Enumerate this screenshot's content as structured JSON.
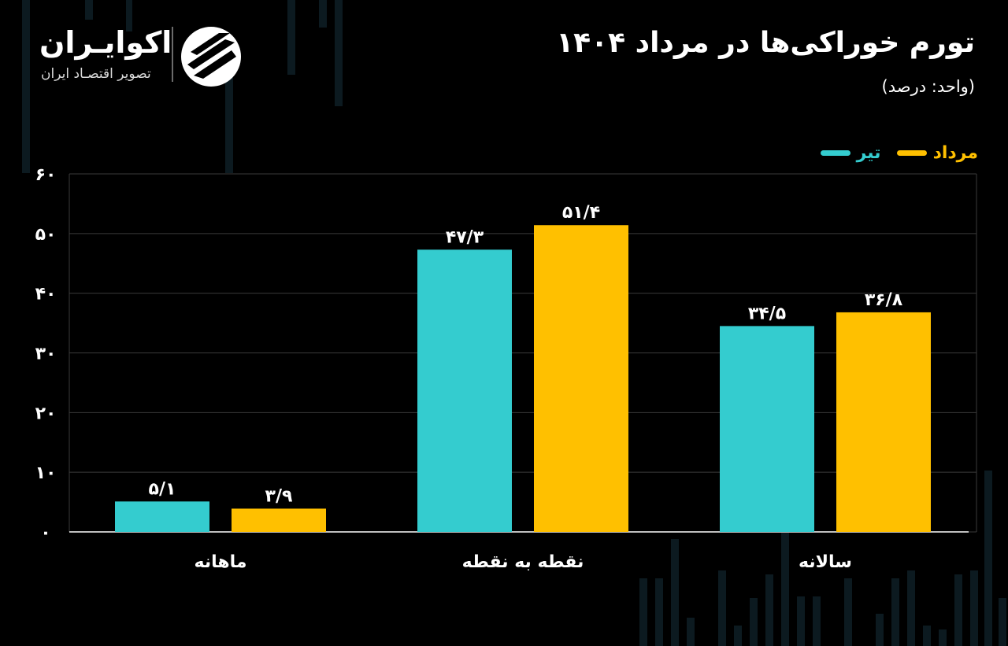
{
  "header": {
    "title": "تورم خوراکی‌ها در مرداد ۱۴۰۴",
    "unit": "(واحد: درصد)"
  },
  "brand": {
    "name": "اکوایـران",
    "tagline": "تصویر اقتصـاد ایران"
  },
  "colors": {
    "background": "#000000",
    "tir": "#34cccf",
    "mordad": "#ffc000",
    "grid": "#3a3a3a",
    "text": "#ffffff"
  },
  "chart_data": {
    "type": "bar",
    "categories": [
      "ماهانه",
      "نقطه به نقطه",
      "سالانه"
    ],
    "series": [
      {
        "name": "تیر",
        "values": [
          5.1,
          47.3,
          34.5
        ],
        "labels": [
          "۵/۱",
          "۴۷/۳",
          "۳۴/۵"
        ]
      },
      {
        "name": "مرداد",
        "values": [
          3.9,
          51.4,
          36.8
        ],
        "labels": [
          "۳/۹",
          "۵۱/۴",
          "۳۶/۸"
        ]
      }
    ],
    "ylim": [
      0,
      60
    ],
    "yticks": [
      0,
      10,
      20,
      30,
      40,
      50,
      60
    ],
    "ytick_labels": [
      "۰",
      "۱۰",
      "۲۰",
      "۳۰",
      "۴۰",
      "۵۰",
      "۶۰"
    ],
    "grid": true,
    "legend_position": "top-right"
  }
}
